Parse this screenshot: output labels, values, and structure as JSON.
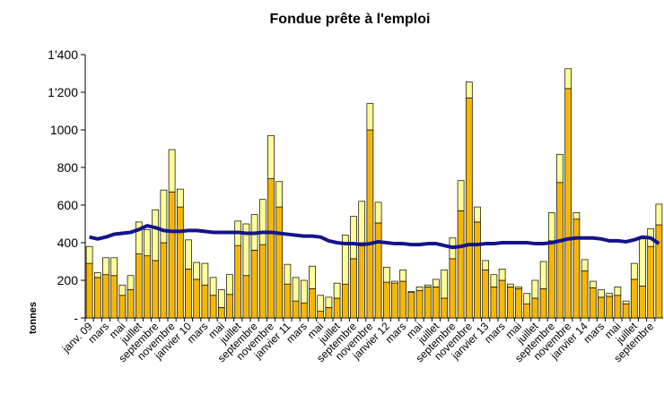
{
  "chart_data": {
    "type": "bar",
    "stacked": true,
    "title": "Fondue prête à l'emploi",
    "y_label": "tonnes",
    "categories": [
      "janv. 09",
      null,
      "mars",
      null,
      "mai",
      null,
      "juillet",
      null,
      "septembre",
      null,
      "novembre",
      null,
      "janvier 10",
      null,
      "mars",
      null,
      "mai",
      null,
      "juillet",
      null,
      "septembre",
      null,
      "novembre",
      null,
      "janvier 11",
      null,
      "mars",
      null,
      "mai",
      null,
      "juillet",
      null,
      "septembre",
      null,
      "novembre",
      null,
      "janvier 12",
      null,
      "mars",
      null,
      "mai",
      null,
      "juillet",
      null,
      "septembre",
      null,
      "novembre",
      null,
      "janvier 13",
      null,
      "mars",
      null,
      "mai",
      null,
      "juillet",
      null,
      "septembre",
      null,
      "novembre",
      null,
      "janvier 14",
      null,
      "mars",
      null,
      "mai",
      null,
      "juillet",
      null,
      "septembre",
      null
    ],
    "series": [
      {
        "color": "#f5b800",
        "values": [
          290,
          215,
          230,
          225,
          120,
          150,
          340,
          330,
          305,
          400,
          670,
          590,
          260,
          205,
          175,
          120,
          55,
          125,
          385,
          225,
          360,
          390,
          740,
          590,
          180,
          90,
          80,
          155,
          35,
          55,
          105,
          180,
          315,
          400,
          1000,
          505,
          190,
          185,
          195,
          135,
          145,
          165,
          165,
          105,
          315,
          570,
          1170,
          510,
          255,
          165,
          200,
          165,
          155,
          75,
          105,
          155,
          410,
          720,
          1220,
          525,
          250,
          160,
          110,
          115,
          120,
          75,
          205,
          170,
          380,
          495
        ]
      },
      {
        "color": "#ffff99",
        "values": [
          90,
          25,
          90,
          95,
          55,
          75,
          170,
          140,
          270,
          280,
          225,
          95,
          155,
          90,
          115,
          95,
          95,
          105,
          130,
          275,
          190,
          240,
          230,
          135,
          105,
          125,
          120,
          120,
          85,
          55,
          80,
          260,
          225,
          220,
          140,
          110,
          80,
          10,
          60,
          5,
          20,
          10,
          40,
          150,
          110,
          160,
          85,
          80,
          50,
          65,
          60,
          15,
          10,
          55,
          95,
          145,
          150,
          150,
          105,
          35,
          60,
          35,
          40,
          15,
          45,
          15,
          85,
          250,
          95,
          110
        ]
      },
      {
        "type": "line",
        "color": "#14148c",
        "values": [
          430,
          420,
          430,
          445,
          450,
          455,
          470,
          490,
          480,
          465,
          460,
          460,
          465,
          465,
          460,
          455,
          455,
          455,
          455,
          450,
          450,
          455,
          455,
          450,
          445,
          440,
          435,
          435,
          430,
          410,
          400,
          395,
          395,
          390,
          395,
          405,
          400,
          395,
          395,
          390,
          390,
          395,
          395,
          385,
          375,
          380,
          390,
          390,
          395,
          395,
          400,
          400,
          400,
          400,
          395,
          395,
          400,
          410,
          420,
          425,
          425,
          425,
          420,
          410,
          410,
          405,
          415,
          430,
          425,
          395
        ]
      }
    ],
    "ylim": [
      0,
      1400
    ],
    "yticks": [
      {
        "value": 0,
        "label": "-"
      },
      200,
      400,
      600,
      800,
      1000,
      {
        "value": 1200,
        "label": "1'200"
      },
      {
        "value": 1400,
        "label": "1'400"
      }
    ]
  }
}
